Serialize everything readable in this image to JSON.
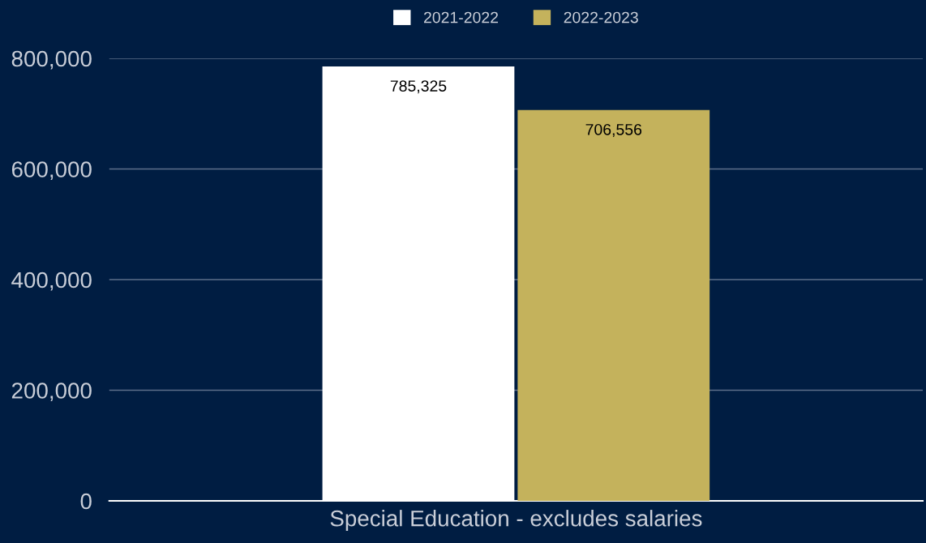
{
  "chart_data": {
    "type": "bar",
    "categories": [
      "Special Education - excludes salaries"
    ],
    "series": [
      {
        "name": "2021-2022",
        "color": "#ffffff",
        "values": [
          785325
        ],
        "value_labels": [
          "785,325"
        ]
      },
      {
        "name": "2022-2023",
        "color": "#c4b25c",
        "values": [
          706556
        ],
        "value_labels": [
          "706,556"
        ]
      }
    ],
    "ylim": [
      0,
      800000
    ],
    "yticks": [
      {
        "value": 0,
        "label": "0"
      },
      {
        "value": 200000,
        "label": "200,000"
      },
      {
        "value": 400000,
        "label": "400,000"
      },
      {
        "value": 600000,
        "label": "600,000"
      },
      {
        "value": 800000,
        "label": "800,000"
      }
    ],
    "grid": "y",
    "legend": "top"
  }
}
